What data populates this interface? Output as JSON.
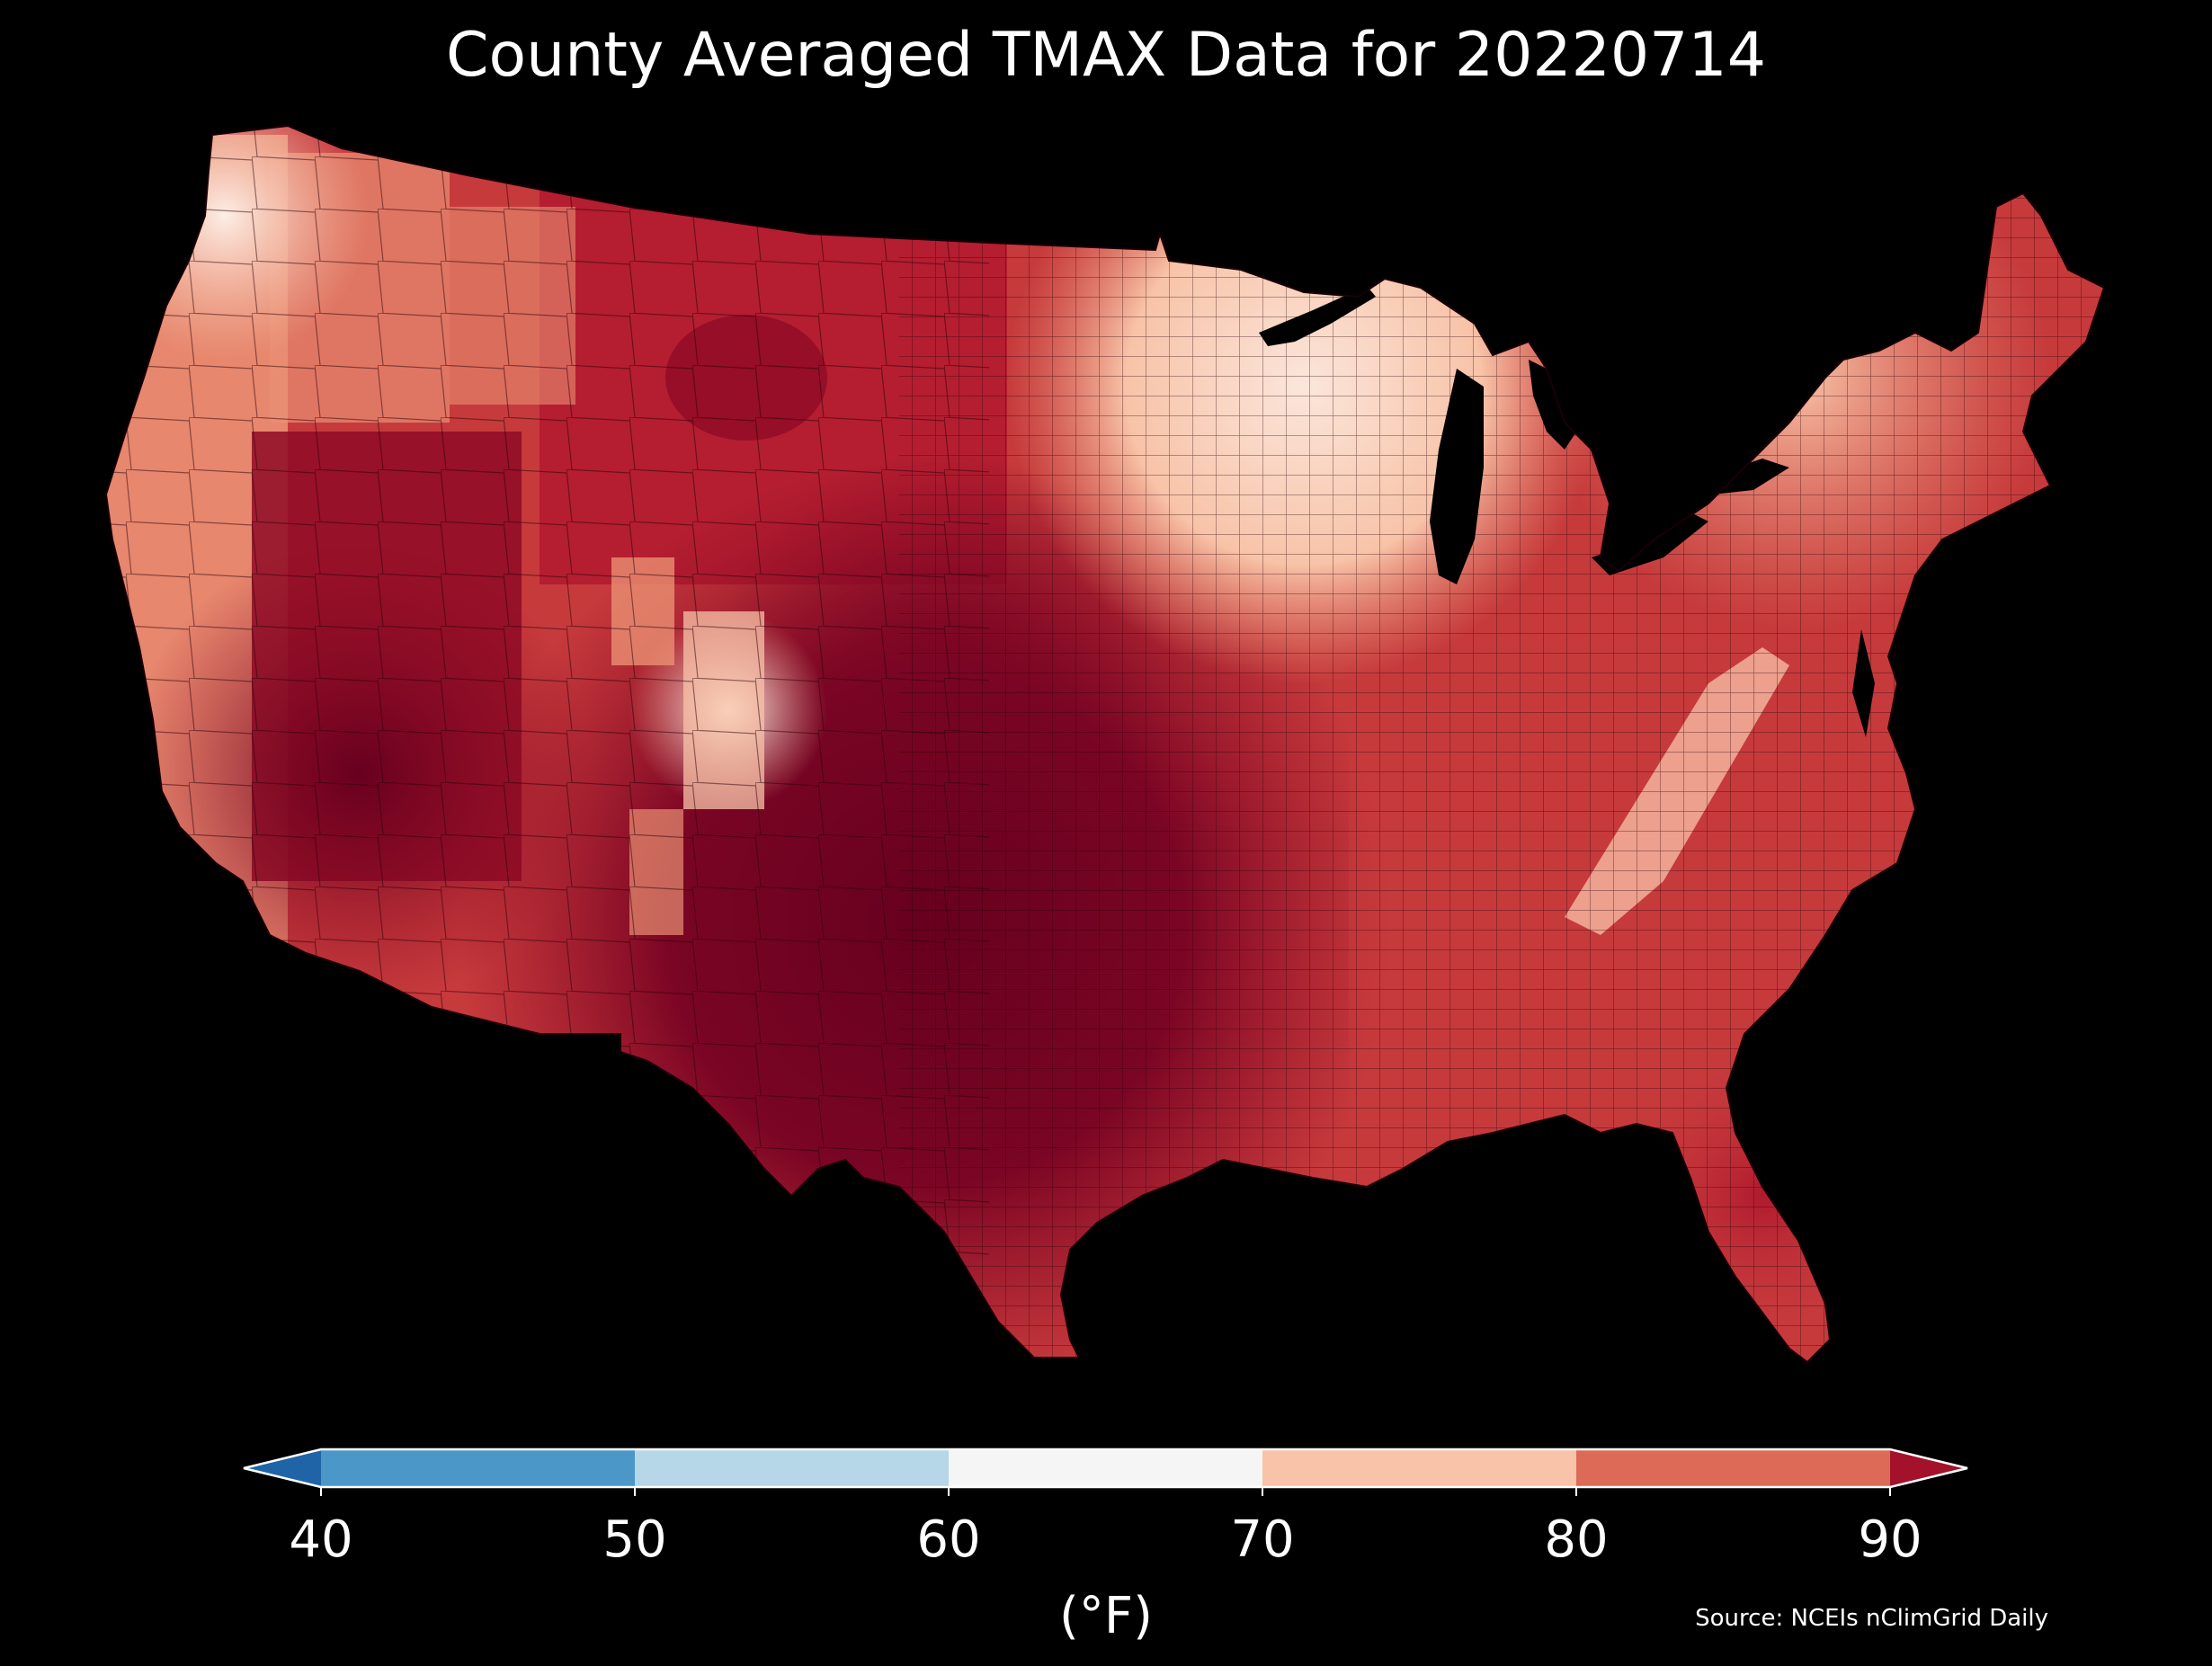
{
  "title": "County Averaged TMAX Data for 20220714",
  "colorbar": {
    "unit_label": "(°F)",
    "ticks": [
      "40",
      "50",
      "60",
      "70",
      "80",
      "90"
    ],
    "bins": [
      {
        "from": 40,
        "to": 50,
        "color": "#4b98c8"
      },
      {
        "from": 50,
        "to": 60,
        "color": "#b6d7e8"
      },
      {
        "from": 60,
        "to": 70,
        "color": "#f5f5f5"
      },
      {
        "from": 70,
        "to": 80,
        "color": "#f8c3a8"
      },
      {
        "from": 80,
        "to": 90,
        "color": "#dc6a56"
      }
    ],
    "under_color": "#2064a8",
    "over_color": "#a3122a"
  },
  "source": "Source: NCEIs nClimGrid Daily",
  "map": {
    "region": "Contiguous United States",
    "background_color": "#000000",
    "palette": {
      "hottest": "#67001f",
      "very_hot": "#8e0a25",
      "hot": "#b01a2e",
      "warm_hot": "#c63a3c",
      "warm": "#dc6a56",
      "mild_warm": "#ea9073",
      "mild": "#f8c3a8",
      "cool": "#fde3d6",
      "coolest": "#fbf2ee"
    }
  }
}
